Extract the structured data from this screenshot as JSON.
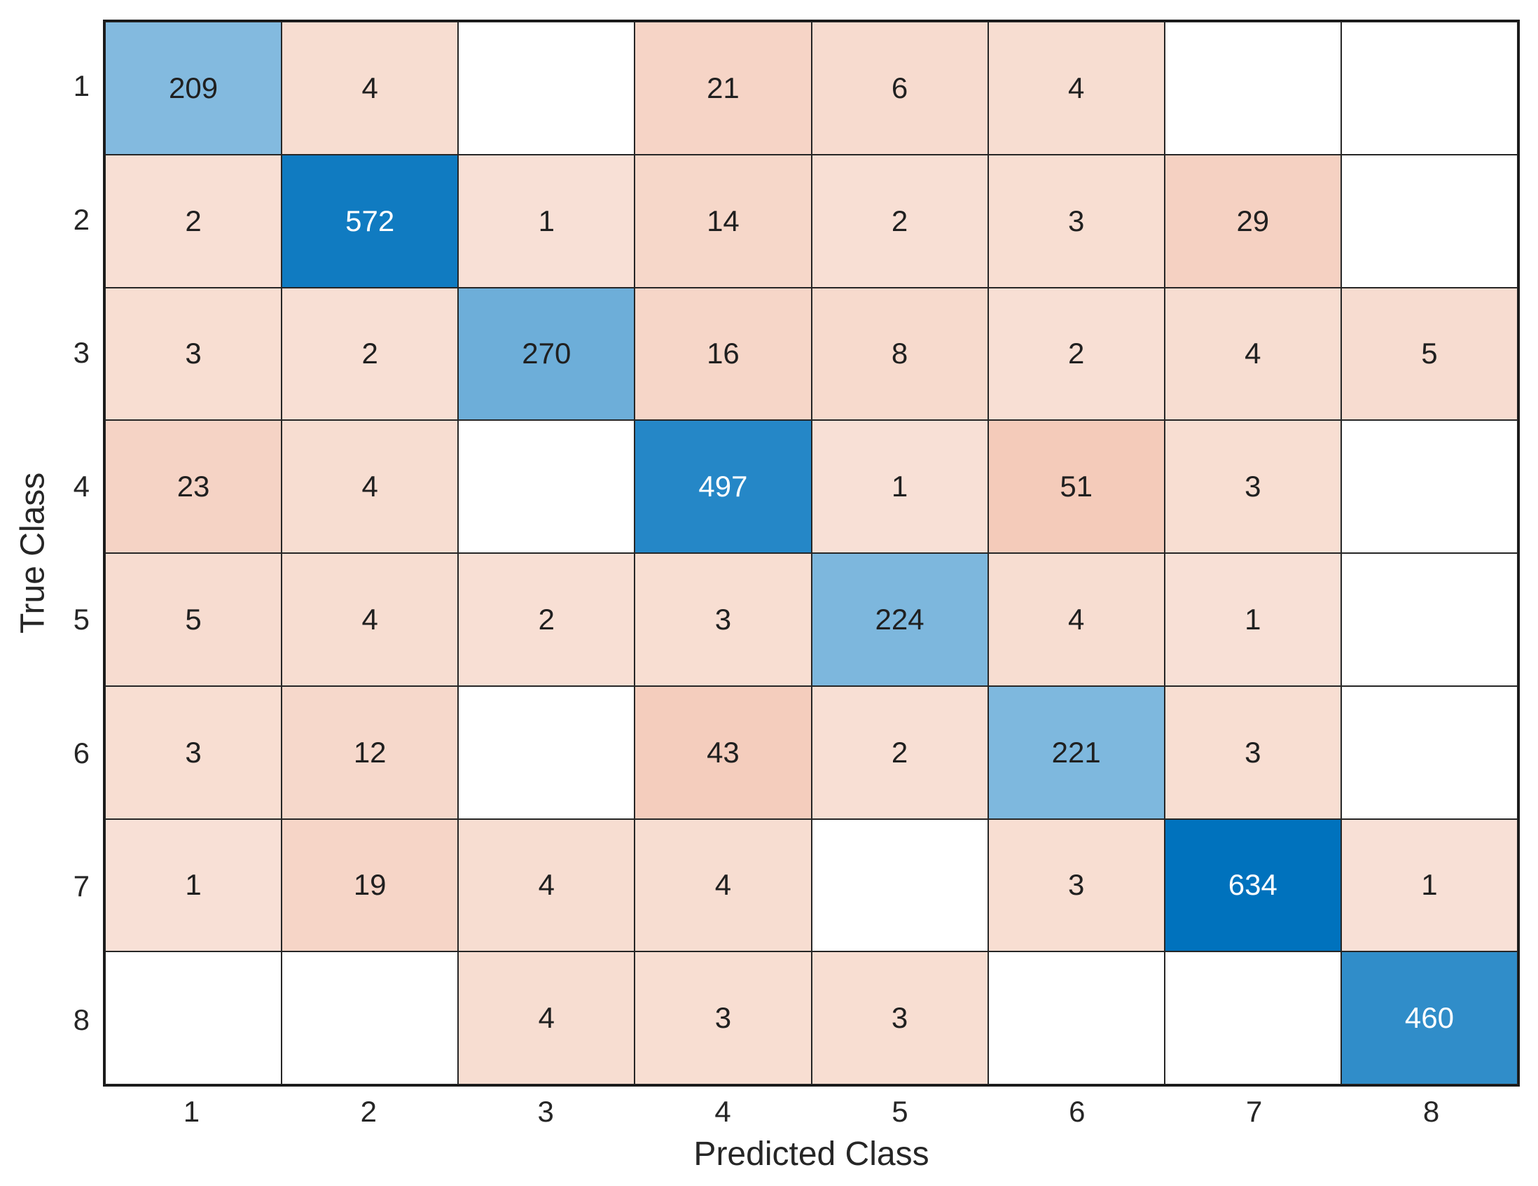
{
  "figure": {
    "xlabel": "Predicted Class",
    "ylabel": "True Class",
    "colors": {
      "diagonal": "#0072BD",
      "off_diagonal": "#D95319",
      "empty_cell": "#FFFFFF",
      "grid_line": "#262626",
      "outer_border": "#1A1A1A",
      "cell_text_dark": "#202020",
      "cell_text_light": "#FFFFFF",
      "tick_text": "#262626",
      "background": "#FFFFFF"
    }
  },
  "chart_data": {
    "type": "heatmap",
    "subtype": "confusion-matrix",
    "title": "",
    "xlabel": "Predicted Class",
    "ylabel": "True Class",
    "x_tick_labels": [
      "1",
      "2",
      "3",
      "4",
      "5",
      "6",
      "7",
      "8"
    ],
    "y_tick_labels": [
      "1",
      "2",
      "3",
      "4",
      "5",
      "6",
      "7",
      "8"
    ],
    "legend": "none",
    "grid": "cell-borders",
    "matrix": [
      [
        209,
        4,
        null,
        21,
        6,
        4,
        null,
        null
      ],
      [
        2,
        572,
        1,
        14,
        2,
        3,
        29,
        null
      ],
      [
        3,
        2,
        270,
        16,
        8,
        2,
        4,
        5
      ],
      [
        23,
        4,
        null,
        497,
        1,
        51,
        3,
        null
      ],
      [
        5,
        4,
        2,
        3,
        224,
        4,
        1,
        null
      ],
      [
        3,
        12,
        null,
        43,
        2,
        221,
        3,
        null
      ],
      [
        1,
        19,
        4,
        4,
        null,
        3,
        634,
        1
      ],
      [
        null,
        null,
        4,
        3,
        3,
        null,
        null,
        460
      ]
    ],
    "max_value": 634,
    "max_off_diagonal_value": 51
  }
}
